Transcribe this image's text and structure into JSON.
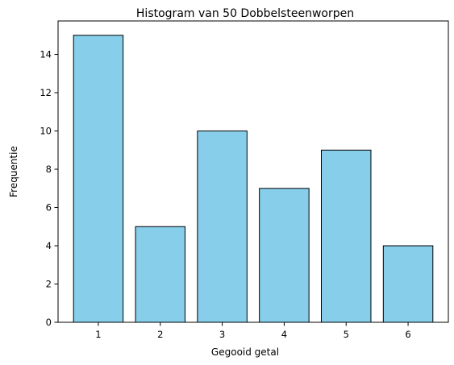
{
  "chart_data": {
    "type": "bar",
    "title": "Histogram van 50 Dobbelsteenworpen",
    "xlabel": "Gegooid getal",
    "ylabel": "Frequentie",
    "categories": [
      "1",
      "2",
      "3",
      "4",
      "5",
      "6"
    ],
    "values": [
      15,
      5,
      10,
      7,
      9,
      4
    ],
    "yticks": [
      "0",
      "2",
      "4",
      "6",
      "8",
      "10",
      "12",
      "14"
    ],
    "ylim": [
      0,
      15.75
    ],
    "xlim": [
      0.35,
      6.65
    ],
    "bar_color": "#87ceeb",
    "bar_edge_color": "#000000",
    "grid": false
  }
}
